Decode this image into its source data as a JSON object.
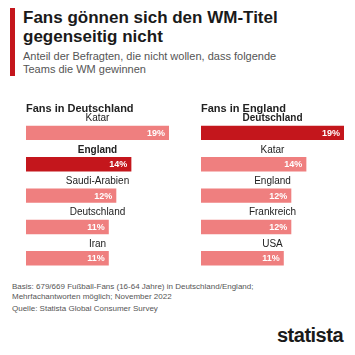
{
  "header": {
    "title": "Fans gönnen sich den WM-Titel gegenseitig nicht",
    "subtitle": "Anteil der Befragten, die nicht wollen, dass folgende Teams die WM gewinnen"
  },
  "chart_data": [
    {
      "type": "bar",
      "orientation": "horizontal",
      "title": "Fans in Deutschland",
      "categories": [
        "Katar",
        "England",
        "Saudi-Arabien",
        "Deutschland",
        "Iran"
      ],
      "values": [
        19,
        14,
        12,
        11,
        11
      ],
      "value_labels": [
        "19%",
        "14%",
        "12%",
        "11%",
        "11%"
      ],
      "colors": [
        "#ef7f7f",
        "#c4161c",
        "#ef7f7f",
        "#ef7f7f",
        "#ef7f7f"
      ],
      "xlim": [
        0,
        19
      ],
      "data_labels": true,
      "tick_labels": false,
      "grid": false
    },
    {
      "type": "bar",
      "orientation": "horizontal",
      "title": "Fans in England",
      "categories": [
        "Deutschland",
        "Katar",
        "England",
        "Frankreich",
        "USA"
      ],
      "values": [
        19,
        14,
        12,
        12,
        11
      ],
      "value_labels": [
        "19%",
        "14%",
        "12%",
        "12%",
        "11%"
      ],
      "colors": [
        "#c4161c",
        "#ef7f7f",
        "#ef7f7f",
        "#ef7f7f",
        "#ef7f7f"
      ],
      "xlim": [
        0,
        19
      ],
      "data_labels": true,
      "tick_labels": false,
      "grid": false
    }
  ],
  "footer": {
    "note": "Basis: 679/669 Fußball-Fans (16-64 Jahre) in Deutschland/England; Mehrfachantworten möglich; November 2022",
    "source": "Quelle: Statista Global Consumer Survey",
    "brand": "statista"
  }
}
